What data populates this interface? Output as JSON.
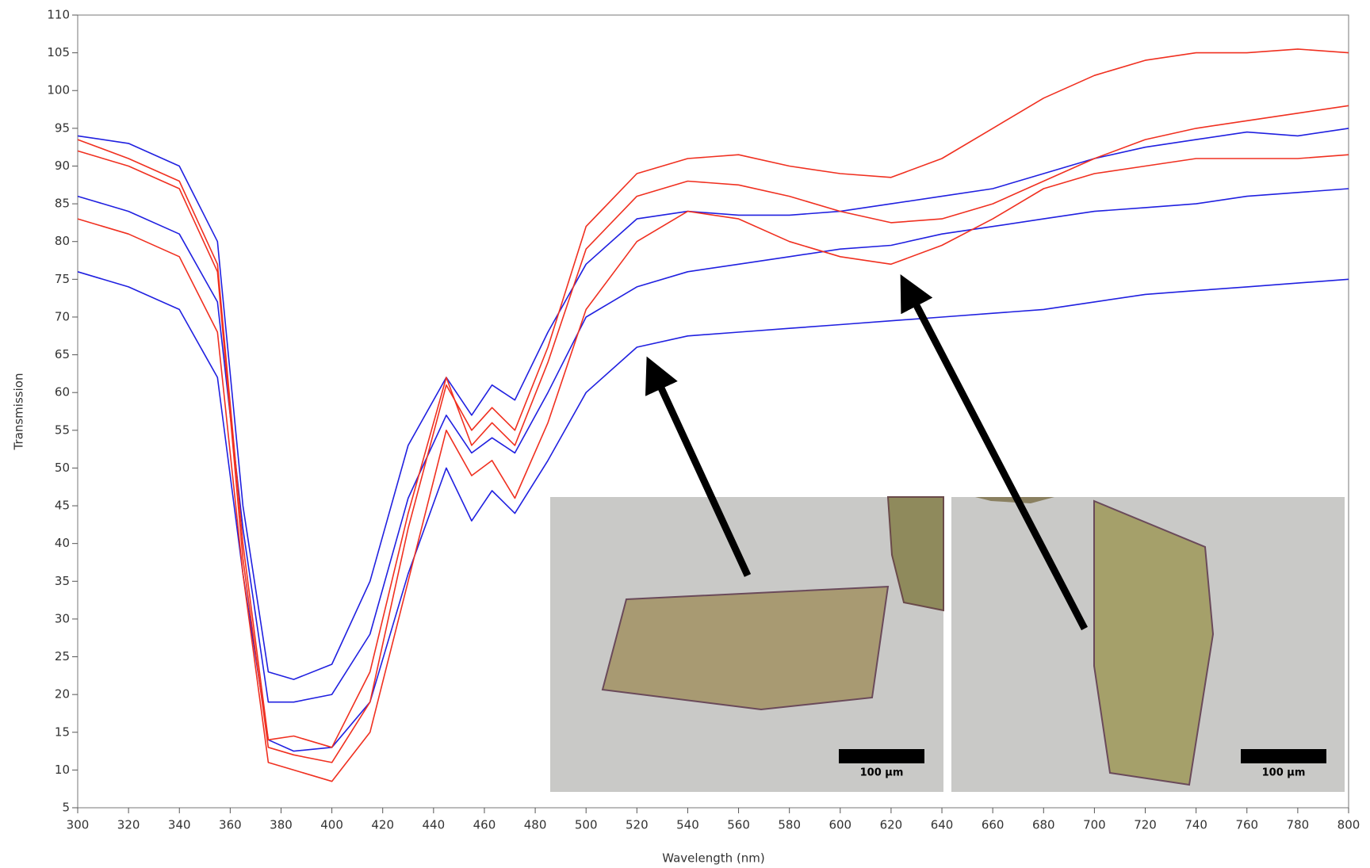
{
  "chart_data": {
    "type": "line",
    "xlabel": "Wavelength (nm)",
    "ylabel": "Transmission",
    "x": [
      300,
      320,
      340,
      355,
      365,
      375,
      385,
      400,
      415,
      430,
      445,
      455,
      463,
      472,
      485,
      500,
      520,
      540,
      560,
      580,
      600,
      620,
      640,
      660,
      680,
      700,
      720,
      740,
      760,
      780,
      800
    ],
    "series": [
      {
        "color": "#2020e0",
        "values": [
          94,
          93,
          90,
          80,
          45,
          23,
          22,
          24,
          35,
          53,
          62,
          57,
          61,
          59,
          68,
          77,
          83,
          84,
          83.5,
          83.5,
          84,
          85,
          86,
          87,
          89,
          91,
          92.5,
          93.5,
          94.5,
          94,
          95
        ]
      },
      {
        "color": "#2020e0",
        "values": [
          86,
          84,
          81,
          72,
          42,
          19,
          19,
          20,
          28,
          46,
          57,
          52,
          54,
          52,
          60,
          70,
          74,
          76,
          77,
          78,
          79,
          79.5,
          81,
          82,
          83,
          84,
          84.5,
          85,
          86,
          86.5,
          87
        ]
      },
      {
        "color": "#2020e0",
        "values": [
          76,
          74,
          71,
          62,
          36,
          14,
          12.5,
          13,
          19,
          36,
          50,
          43,
          47,
          44,
          51,
          60,
          66,
          67.5,
          68,
          68.5,
          69,
          69.5,
          70,
          70.5,
          71,
          72,
          73,
          73.5,
          74,
          74.5,
          75
        ]
      },
      {
        "color": "#f03020",
        "values": [
          93.5,
          91,
          88,
          77,
          40,
          14,
          14.5,
          13,
          23,
          44,
          62,
          53,
          56,
          53,
          64,
          79,
          86,
          88,
          87.5,
          86,
          84,
          82.5,
          83,
          85,
          88,
          91,
          93.5,
          95,
          96,
          97,
          98
        ]
      },
      {
        "color": "#f03020",
        "values": [
          92,
          90,
          87,
          76,
          38,
          13,
          12,
          11,
          19,
          42,
          61,
          55,
          58,
          55,
          66,
          82,
          89,
          91,
          91.5,
          90,
          89,
          88.5,
          91,
          95,
          99,
          102,
          104,
          105,
          105,
          105.5,
          105
        ]
      },
      {
        "color": "#f03020",
        "values": [
          83,
          81,
          78,
          68,
          36,
          11,
          10,
          8.5,
          15,
          35,
          55,
          49,
          51,
          46,
          56,
          71,
          80,
          84,
          83,
          80,
          78,
          77,
          79.5,
          83,
          87,
          89,
          90,
          91,
          91,
          91,
          91.5
        ]
      }
    ],
    "xlim": [
      300,
      800
    ],
    "ylim": [
      5,
      110
    ],
    "xticks": [
      300,
      320,
      340,
      360,
      380,
      400,
      420,
      440,
      460,
      480,
      500,
      520,
      540,
      560,
      580,
      600,
      620,
      640,
      660,
      680,
      700,
      720,
      740,
      760,
      780,
      800
    ],
    "yticks": [
      5,
      10,
      15,
      20,
      25,
      30,
      35,
      40,
      45,
      50,
      55,
      60,
      65,
      70,
      75,
      80,
      85,
      90,
      95,
      100,
      105,
      110
    ],
    "scale_bar_labels": [
      "100 µm",
      "100 µm"
    ]
  }
}
